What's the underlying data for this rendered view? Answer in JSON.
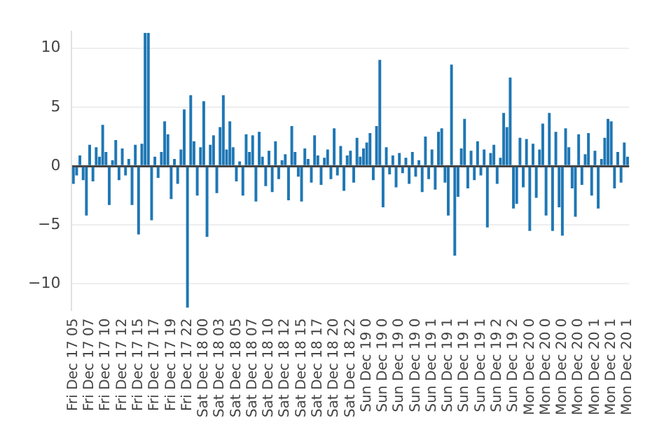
{
  "chart_data": {
    "type": "bar",
    "categories": [
      "Fri Dec 17 05",
      null,
      null,
      null,
      null,
      "Fri Dec 17 07",
      null,
      null,
      null,
      null,
      "Fri Dec 17 10",
      null,
      null,
      null,
      null,
      "Fri Dec 17 12",
      null,
      null,
      null,
      null,
      "Fri Dec 17 15",
      null,
      null,
      null,
      null,
      "Fri Dec 17 17",
      null,
      null,
      null,
      null,
      "Fri Dec 17 19",
      null,
      null,
      null,
      null,
      "Fri Dec 17 22",
      null,
      null,
      null,
      null,
      "Sat Dec 18 00",
      null,
      null,
      null,
      null,
      "Sat Dec 18 03",
      null,
      null,
      null,
      null,
      "Sat Dec 18 05",
      null,
      null,
      null,
      null,
      "Sat Dec 18 07",
      null,
      null,
      null,
      null,
      "Sat Dec 18 10",
      null,
      null,
      null,
      null,
      "Sat Dec 18 12",
      null,
      null,
      null,
      null,
      "Sat Dec 18 15",
      null,
      null,
      null,
      null,
      "Sat Dec 18 17",
      null,
      null,
      null,
      null,
      "Sat Dec 18 20",
      null,
      null,
      null,
      null,
      "Sat Dec 18 22",
      null,
      null,
      null,
      null,
      "Sun Dec 19 0",
      null,
      null,
      null,
      null,
      "Sun Dec 19 0",
      null,
      null,
      null,
      null,
      "Sun Dec 19 0",
      null,
      null,
      null,
      null,
      "Sun Dec 19 0",
      null,
      null,
      null,
      null,
      "Sun Dec 19 1",
      null,
      null,
      null,
      null,
      "Sun Dec 19 1",
      null,
      null,
      null,
      null,
      "Sun Dec 19 1",
      null,
      null,
      null,
      null,
      "Sun Dec 19 1",
      null,
      null,
      null,
      null,
      "Sun Dec 19 2",
      null,
      null,
      null,
      null,
      "Sun Dec 19 2",
      null,
      null,
      null,
      null,
      "Mon Dec 20 0",
      null,
      null,
      null,
      null,
      "Mon Dec 20 0",
      null,
      null,
      null,
      null,
      "Mon Dec 20 0",
      null,
      null,
      null,
      null,
      "Mon Dec 20 0",
      null,
      null,
      null,
      null,
      "Mon Dec 20 1",
      null,
      null,
      null,
      null,
      "Mon Dec 20 1",
      null,
      null,
      null,
      null,
      "Mon Dec 20 1"
    ],
    "values": [
      -1.5,
      -0.8,
      0.9,
      -1.2,
      -4.2,
      1.8,
      -1.3,
      1.6,
      0.8,
      3.5,
      1.2,
      -3.3,
      0.5,
      2.2,
      -1.2,
      1.5,
      -0.8,
      0.6,
      -3.3,
      1.8,
      -5.8,
      1.9,
      11.3,
      11.3,
      -4.6,
      0.8,
      -1.0,
      1.2,
      3.8,
      2.7,
      -2.8,
      0.6,
      -1.5,
      1.4,
      4.8,
      -12,
      6,
      2.1,
      -2.5,
      1.6,
      5.5,
      -6,
      1.8,
      2.6,
      -2.3,
      3.3,
      6,
      1.4,
      3.8,
      1.6,
      -1.3,
      0.4,
      -2.5,
      2.7,
      1.2,
      2.6,
      -3,
      2.9,
      0.8,
      -1.7,
      1.3,
      -2.2,
      2.1,
      -1.1,
      0.5,
      1.0,
      -2.9,
      3.4,
      1.2,
      -0.9,
      -3,
      1.5,
      0.6,
      -1.4,
      2.6,
      0.9,
      -1.6,
      0.7,
      1.4,
      -1.1,
      3.2,
      -0.8,
      1.7,
      -2.1,
      0.9,
      1.3,
      -1.4,
      2.4,
      0.8,
      1.5,
      2.0,
      2.8,
      -1.2,
      3.4,
      9,
      -3.5,
      1.6,
      -0.7,
      0.9,
      -1.8,
      1.1,
      -0.6,
      0.7,
      -1.5,
      1.2,
      -0.9,
      0.5,
      -2.2,
      2.5,
      -1.1,
      1.4,
      -2.0,
      2.9,
      3.2,
      -1.4,
      -4.2,
      8.6,
      -7.6,
      -2.6,
      1.5,
      4,
      -1.9,
      1.3,
      -1.2,
      2.1,
      -0.8,
      1.4,
      -5.2,
      1.1,
      1.8,
      -1.5,
      0.7,
      4.5,
      3.3,
      7.5,
      -3.6,
      -3.2,
      2.4,
      -1.8,
      2.3,
      -5.5,
      1.9,
      -2.7,
      1.4,
      3.6,
      -4.2,
      4.5,
      -5.5,
      2.9,
      -3.5,
      -5.9,
      3.2,
      1.6,
      -1.9,
      -4.3,
      2.7,
      -1.6,
      1.0,
      2.8,
      -2.5,
      1.3,
      -3.6,
      0.6,
      2.4,
      4,
      3.8,
      -1.9,
      1.2,
      -1.4,
      2,
      0.8
    ],
    "color": "#1f77b4",
    "ylim": [
      -12.2,
      11.4
    ],
    "yticks": [
      {
        "value": -10,
        "label": "−10"
      },
      {
        "value": -5,
        "label": "−5"
      },
      0,
      5,
      10
    ],
    "grid": "y"
  }
}
